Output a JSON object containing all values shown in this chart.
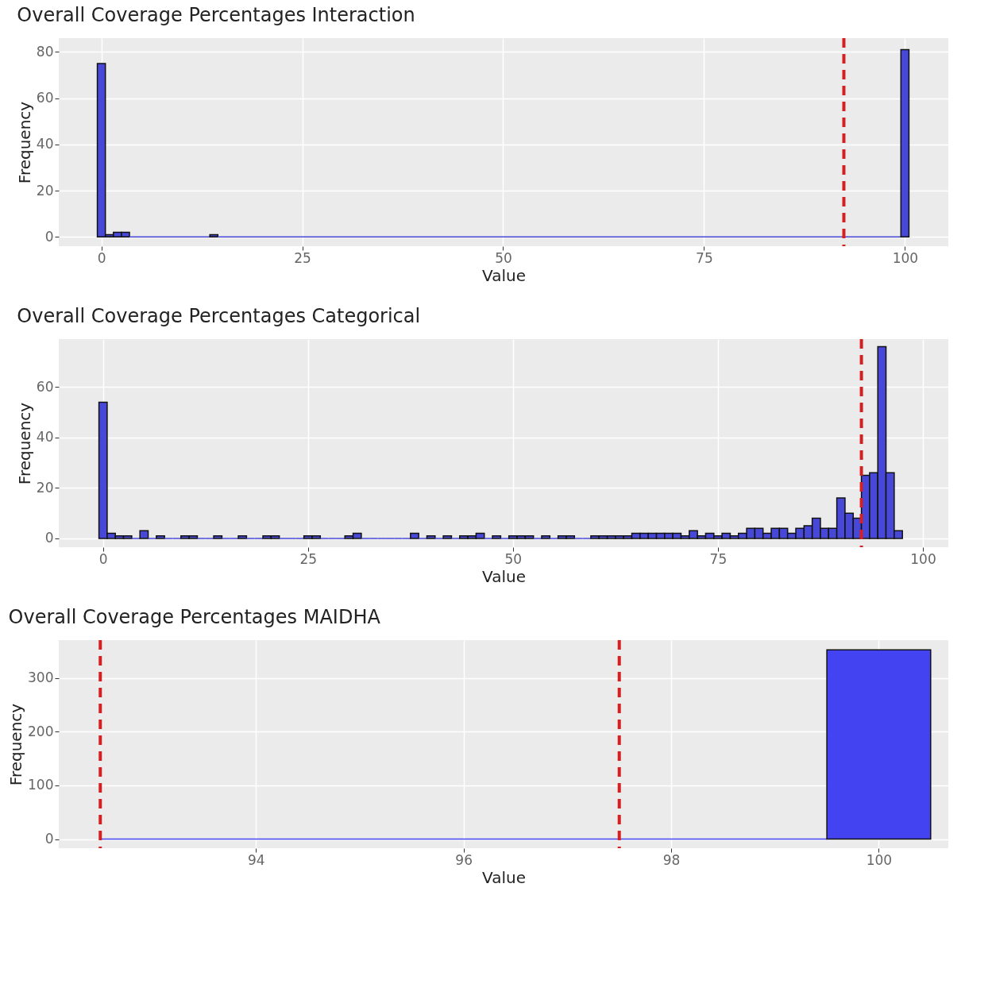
{
  "chart_data": [
    {
      "type": "histogram",
      "title": "Overall Coverage Percentages Interaction",
      "xlabel": "Value",
      "ylabel": "Frequency",
      "bins": [
        -0.5,
        0.5,
        1.5,
        2.5,
        3.5,
        13.5,
        14.5,
        99.5,
        100.5
      ],
      "values": [
        75,
        1,
        2,
        2,
        0,
        1,
        0,
        81
      ],
      "color": "#4848d8",
      "xlim": [
        -5.3,
        105.4
      ],
      "ylim": [
        -4,
        86
      ],
      "xticks": [
        0,
        25,
        50,
        75,
        100
      ],
      "yticks": [
        0,
        20,
        40,
        60,
        80
      ],
      "ref_lines": [
        {
          "axis": "x",
          "value": 92.4,
          "color": "#d42020",
          "line_style": "dashed"
        }
      ],
      "grid": true
    },
    {
      "type": "histogram",
      "title": "Overall Coverage Percentages Categorical",
      "xlabel": "Value",
      "ylabel": "Frequency",
      "bins": [
        -0.5,
        0.5,
        1.5,
        2.5,
        3.5,
        4.5,
        5.5,
        6.5,
        7.5,
        8.5,
        9.5,
        10.5,
        11.5,
        12.5,
        13.5,
        14.5,
        15.5,
        16.5,
        17.5,
        18.5,
        19.5,
        20.5,
        21.5,
        22.5,
        23.5,
        24.5,
        25.5,
        26.5,
        27.5,
        28.5,
        29.5,
        30.5,
        31.5,
        32.5,
        33.5,
        34.5,
        35.5,
        36.5,
        37.5,
        38.5,
        39.5,
        40.5,
        41.5,
        42.5,
        43.5,
        44.5,
        45.5,
        46.5,
        47.5,
        48.5,
        49.5,
        50.5,
        51.5,
        52.5,
        53.5,
        54.5,
        55.5,
        56.5,
        57.5,
        58.5,
        59.5,
        60.5,
        61.5,
        62.5,
        63.5,
        64.5,
        65.5,
        66.5,
        67.5,
        68.5,
        69.5,
        70.5,
        71.5,
        72.5,
        73.5,
        74.5,
        75.5,
        76.5,
        77.5,
        78.5,
        79.5,
        80.5,
        81.5,
        82.5,
        83.5,
        84.5,
        85.5,
        86.5,
        87.5,
        88.5,
        89.5,
        90.5,
        91.5,
        92.5,
        93.5,
        94.5,
        95.5,
        96.5,
        97.5
      ],
      "values": [
        54,
        2,
        1,
        1,
        0,
        3,
        0,
        1,
        0,
        0,
        1,
        1,
        0,
        0,
        1,
        0,
        0,
        1,
        0,
        0,
        1,
        1,
        0,
        0,
        0,
        1,
        1,
        0,
        0,
        0,
        1,
        2,
        0,
        0,
        0,
        0,
        0,
        0,
        2,
        0,
        1,
        0,
        1,
        0,
        1,
        1,
        2,
        0,
        1,
        0,
        1,
        1,
        1,
        0,
        1,
        0,
        1,
        1,
        0,
        0,
        1,
        1,
        1,
        1,
        1,
        2,
        2,
        2,
        2,
        2,
        2,
        1,
        3,
        1,
        2,
        1,
        2,
        1,
        2,
        4,
        4,
        2,
        4,
        4,
        2,
        4,
        5,
        8,
        4,
        4,
        16,
        10,
        8,
        25,
        26,
        76,
        26,
        3
      ],
      "color": "#4848d8",
      "xlim": [
        -5.4,
        103.1
      ],
      "ylim": [
        -3.5,
        79
      ],
      "xticks": [
        0,
        25,
        50,
        75,
        100
      ],
      "yticks": [
        0,
        20,
        40,
        60
      ],
      "ref_lines": [
        {
          "axis": "x",
          "value": 92.5,
          "color": "#d42020",
          "line_style": "dashed"
        }
      ],
      "grid": true
    },
    {
      "type": "histogram",
      "title": "Overall Coverage Percentages MAIDHA",
      "xlabel": "Value",
      "ylabel": "Frequency",
      "bins": [
        92.5,
        99.5,
        100.5
      ],
      "values": [
        0,
        353
      ],
      "color": "#4343f2",
      "xlim": [
        92.1,
        100.67
      ],
      "ylim": [
        -17,
        371
      ],
      "xticks": [
        94,
        96,
        98,
        100
      ],
      "yticks": [
        0,
        100,
        200,
        300
      ],
      "ref_lines": [
        {
          "axis": "x",
          "value": 92.5,
          "color": "#d42020",
          "line_style": "dashed"
        },
        {
          "axis": "x",
          "value": 97.5,
          "color": "#d42020",
          "line_style": "dashed"
        }
      ],
      "grid": true
    }
  ]
}
